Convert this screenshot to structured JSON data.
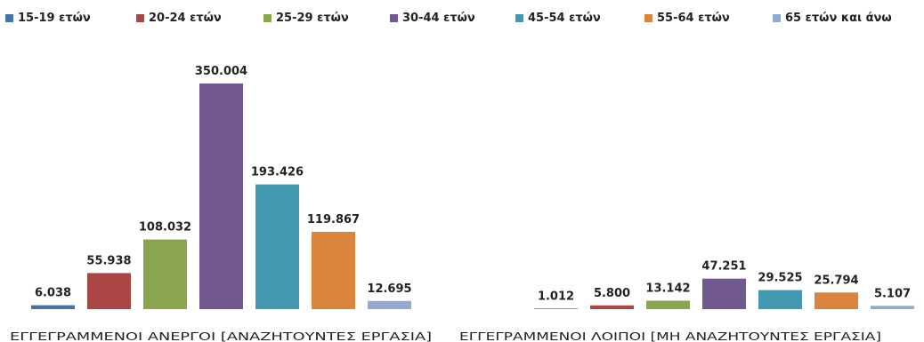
{
  "chart_data": {
    "type": "bar",
    "categories": [
      "ΕΓΓΕΓΡΑΜΜΕΝΟΙ ΑΝΕΡΓΟΙ [ΑΝΑΖΗΤΟΥΝΤΕΣ ΕΡΓΑΣΙΑ]",
      "ΕΓΓΕΓΡΑΜΜΕΝΟΙ ΛΟΙΠΟΙ [ΜΗ ΑΝΑΖΗΤΟΥΝΤΕΣ ΕΡΓΑΣΙΑ]"
    ],
    "series": [
      {
        "name": "15-19 ετών",
        "color": "#4572A7",
        "values": [
          6038,
          1012
        ],
        "labels": [
          "6.038",
          "1.012"
        ]
      },
      {
        "name": "20-24 ετών",
        "color": "#AA4643",
        "values": [
          55938,
          5800
        ],
        "labels": [
          "55.938",
          "5.800"
        ]
      },
      {
        "name": "25-29 ετών",
        "color": "#89A54E",
        "values": [
          108032,
          13142
        ],
        "labels": [
          "108.032",
          "13.142"
        ]
      },
      {
        "name": "30-44 ετών",
        "color": "#71588F",
        "values": [
          350004,
          47251
        ],
        "labels": [
          "350.004",
          "47.251"
        ]
      },
      {
        "name": "45-54 ετών",
        "color": "#4198AF",
        "values": [
          193426,
          29525
        ],
        "labels": [
          "193.426",
          "29.525"
        ]
      },
      {
        "name": "55-64 ετών",
        "color": "#DB843D",
        "values": [
          119867,
          25794
        ],
        "labels": [
          "119.867",
          "25.794"
        ]
      },
      {
        "name": "65 ετών και άνω",
        "color": "#93A9CF",
        "values": [
          12695,
          5107
        ],
        "labels": [
          "12.695",
          "5.107"
        ]
      }
    ],
    "ylim": [
      0,
      350004
    ],
    "legend_position": "top",
    "grid": false
  }
}
